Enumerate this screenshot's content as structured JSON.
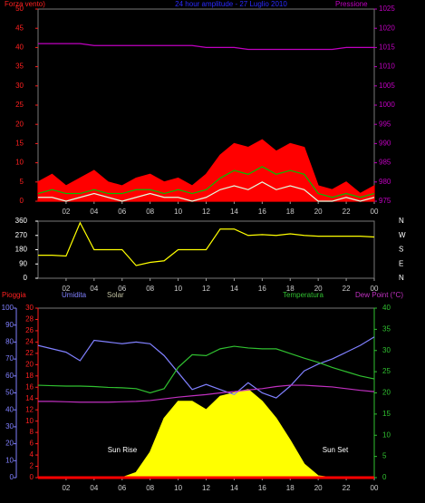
{
  "chart_data": [
    {
      "type": "line",
      "title": "24 hour amplitude - 27 Luglio 2010",
      "ylabel": "Forza vento)",
      "y2label": "Pressione",
      "x": [
        0,
        1,
        2,
        3,
        4,
        5,
        6,
        7,
        8,
        9,
        10,
        11,
        12,
        13,
        14,
        15,
        16,
        17,
        18,
        19,
        20,
        21,
        22,
        23,
        24
      ],
      "xticks": [
        {
          "value": 2,
          "label": "02"
        },
        {
          "value": 4,
          "label": "04"
        },
        {
          "value": 6,
          "label": "06"
        },
        {
          "value": 8,
          "label": "08"
        },
        10,
        12,
        14,
        16,
        18,
        20,
        22,
        {
          "value": 24,
          "label": "00"
        }
      ],
      "xlim": [
        0,
        24
      ],
      "ylim": [
        0,
        50
      ],
      "yticks": [
        0,
        5,
        10,
        15,
        20,
        25,
        30,
        35,
        40,
        45,
        50
      ],
      "y2lim": [
        975,
        1025
      ],
      "y2ticks": [
        975,
        980,
        985,
        990,
        995,
        1000,
        1005,
        1010,
        1015,
        1020,
        1025
      ],
      "series": [
        {
          "color": "#ff0000",
          "style": "area",
          "values": [
            5,
            7,
            4,
            6,
            8,
            5,
            4,
            6,
            7,
            5,
            6,
            4,
            7,
            12,
            15,
            14,
            16,
            13,
            15,
            14,
            4,
            3,
            5,
            2,
            4
          ]
        },
        {
          "color": "#00c000",
          "values": [
            2,
            3,
            2,
            2,
            3,
            2,
            2,
            3,
            3,
            2,
            3,
            2,
            3,
            6,
            8,
            7,
            9,
            7,
            8,
            7,
            2,
            1,
            2,
            1,
            2
          ]
        },
        {
          "color": "#e0ffe0",
          "values": [
            1,
            1,
            0,
            1,
            2,
            1,
            0,
            1,
            2,
            1,
            1,
            0,
            1,
            3,
            4,
            3,
            5,
            3,
            4,
            3,
            0,
            0,
            1,
            0,
            1
          ]
        },
        {
          "color": "#c000c0",
          "axis": "y2",
          "values": [
            1016,
            1016,
            1016,
            1016,
            1015.5,
            1015.5,
            1015.5,
            1015.5,
            1015.5,
            1015.5,
            1015.5,
            1015.5,
            1015,
            1015,
            1015,
            1014.5,
            1014.5,
            1014.5,
            1014.5,
            1014.5,
            1014.5,
            1014.5,
            1015,
            1015,
            1015
          ]
        }
      ]
    },
    {
      "type": "line",
      "x": [
        0,
        1,
        2,
        3,
        4,
        5,
        6,
        7,
        8,
        9,
        10,
        11,
        12,
        13,
        14,
        15,
        16,
        17,
        18,
        19,
        20,
        21,
        22,
        23,
        24
      ],
      "xticks": [
        {
          "value": 2,
          "label": "02"
        },
        {
          "value": 4,
          "label": "04"
        },
        {
          "value": 6,
          "label": "06"
        },
        {
          "value": 8,
          "label": "08"
        },
        10,
        12,
        14,
        16,
        18,
        20,
        22,
        {
          "value": 24,
          "label": "00"
        }
      ],
      "xlim": [
        0,
        24
      ],
      "ylim": [
        0,
        360
      ],
      "yticks": [
        0,
        90,
        180,
        270,
        360
      ],
      "compass": [
        "N",
        "E",
        "S",
        "W",
        "N"
      ],
      "series": [
        {
          "color": "#ffff00",
          "values": [
            145,
            145,
            140,
            350,
            180,
            180,
            180,
            80,
            100,
            110,
            180,
            180,
            180,
            310,
            310,
            270,
            275,
            270,
            280,
            270,
            265,
            265,
            265,
            265,
            260
          ]
        }
      ]
    },
    {
      "type": "line",
      "x": [
        0,
        1,
        2,
        3,
        4,
        5,
        6,
        7,
        8,
        9,
        10,
        11,
        12,
        13,
        14,
        15,
        16,
        17,
        18,
        19,
        20,
        21,
        22,
        23,
        24
      ],
      "xticks": [
        {
          "value": 2,
          "label": "02"
        },
        {
          "value": 4,
          "label": "04"
        },
        {
          "value": 6,
          "label": "06"
        },
        {
          "value": 8,
          "label": "08"
        },
        10,
        12,
        14,
        16,
        18,
        20,
        22,
        {
          "value": 24,
          "label": "00"
        }
      ],
      "xlim": [
        0,
        24
      ],
      "ylim": [
        0,
        100
      ],
      "yticks": [
        0,
        10,
        20,
        30,
        40,
        50,
        60,
        70,
        80,
        90,
        100
      ],
      "y2lim": [
        0,
        30
      ],
      "y2ticks": [
        0,
        2,
        4,
        6,
        8,
        10,
        12,
        14,
        16,
        18,
        20,
        22,
        24,
        26,
        28,
        30
      ],
      "y3lim": [
        0,
        40
      ],
      "y3ticks": [
        0,
        5,
        10,
        15,
        20,
        25,
        30,
        35,
        40
      ],
      "annotations": [
        "Sun Rise",
        "Sun Set"
      ],
      "series": [
        {
          "name": "Pioggia",
          "color": "#ff0000",
          "axis": "y2",
          "values": [
            0,
            0,
            0,
            0,
            0,
            0,
            0,
            0,
            0,
            0,
            0,
            0,
            0,
            0,
            0,
            0,
            0,
            0,
            0,
            0,
            0,
            0,
            0,
            0,
            0
          ]
        },
        {
          "name": "Umidita",
          "color": "#8080ff",
          "values": [
            78,
            76,
            74,
            69,
            81,
            80,
            79,
            80,
            79,
            72,
            62,
            52,
            55,
            52,
            49,
            56,
            50,
            47,
            54,
            63,
            67,
            70,
            74,
            78,
            83
          ]
        },
        {
          "name": "Solar",
          "color": "#ffff00",
          "style": "area",
          "values": [
            0,
            0,
            0,
            0,
            0,
            0,
            0,
            3,
            15,
            35,
            45,
            45,
            40,
            48,
            50,
            52,
            45,
            35,
            22,
            8,
            1,
            0,
            0,
            0,
            0
          ]
        },
        {
          "name": "Temperatura",
          "color": "#30c030",
          "axis": "y3",
          "values": [
            21.8,
            21.7,
            21.6,
            21.6,
            21.5,
            21.3,
            21.2,
            21.0,
            20.0,
            21.0,
            26,
            29,
            28.8,
            30.4,
            31,
            30.6,
            30.4,
            30.4,
            29.3,
            28.2,
            27.2,
            26,
            25,
            24,
            23.3
          ]
        },
        {
          "name": "Dew Point (°C)",
          "color": "#c030c0",
          "axis": "y3",
          "values": [
            18,
            18,
            17.9,
            17.8,
            17.8,
            17.8,
            17.9,
            18,
            18.2,
            18.6,
            19,
            19.3,
            19.6,
            20,
            20.3,
            20.7,
            21,
            21.5,
            21.8,
            21.8,
            21.6,
            21.4,
            21,
            20.6,
            20.3
          ]
        }
      ]
    }
  ]
}
